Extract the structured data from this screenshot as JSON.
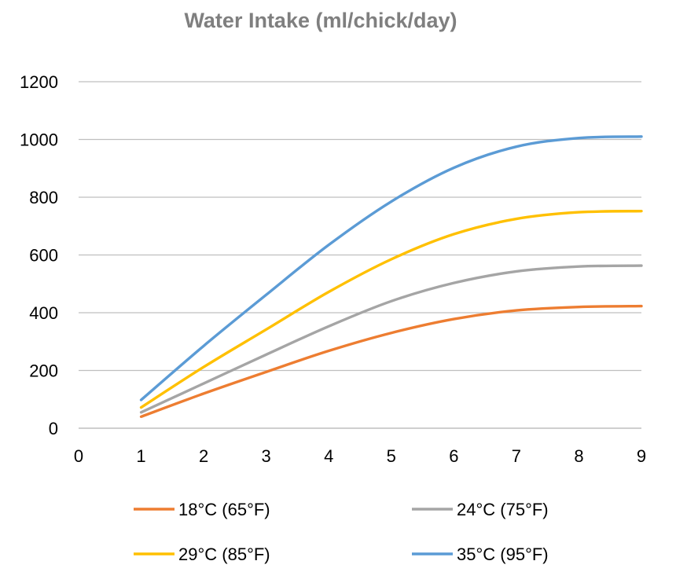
{
  "chart_data": {
    "type": "line",
    "title": "Water Intake (ml/chick/day)",
    "xlabel": "",
    "ylabel": "",
    "xlim": [
      0,
      9
    ],
    "ylim": [
      0,
      1200
    ],
    "x_ticks": [
      0,
      1,
      2,
      3,
      4,
      5,
      6,
      7,
      8,
      9
    ],
    "y_ticks": [
      0,
      200,
      400,
      600,
      800,
      1000,
      1200
    ],
    "grid": true,
    "legend_position": "bottom",
    "x": [
      1,
      2,
      3,
      4,
      5,
      6,
      7,
      8,
      9
    ],
    "series": [
      {
        "name": "18°C (65°F)",
        "color": "#ed7d31",
        "values": [
          40,
          120,
          195,
          268,
          330,
          378,
          408,
          420,
          423
        ]
      },
      {
        "name": "24°C (75°F)",
        "color": "#a5a5a5",
        "values": [
          55,
          155,
          255,
          353,
          440,
          503,
          543,
          560,
          563
        ]
      },
      {
        "name": "29°C (85°F)",
        "color": "#ffc000",
        "values": [
          72,
          212,
          342,
          472,
          585,
          672,
          725,
          748,
          752
        ]
      },
      {
        "name": "35°C (95°F)",
        "color": "#5b9bd5",
        "values": [
          98,
          285,
          462,
          635,
          785,
          902,
          975,
          1005,
          1010
        ]
      }
    ]
  }
}
